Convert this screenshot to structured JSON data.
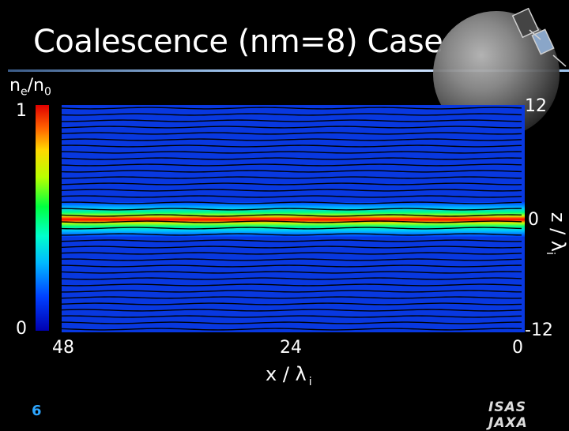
{
  "slide": {
    "title": "Coalescence (nm=8) Case",
    "slide_number": "6",
    "logo_text": "ISAS JAXA"
  },
  "colorbar": {
    "label_main": "n",
    "label_sub1": "e",
    "label_sep": "/n",
    "label_sub2": "0",
    "max_label": "1",
    "min_label": "0"
  },
  "chart_data": {
    "type": "heatmap",
    "title": "Coalescence (nm=8) Case",
    "quantity": "n_e/n_0",
    "xlabel": "x / λ i",
    "ylabel": "z / λ i",
    "x_ticks": [
      "48",
      "24",
      "0"
    ],
    "y_ticks": [
      "12",
      "0",
      "-12"
    ],
    "xlim": [
      48,
      0
    ],
    "ylim": [
      -12,
      12
    ],
    "color_range": [
      0,
      1
    ],
    "background_density": 0.1,
    "current_sheet_center_z": 0,
    "current_sheet_peak_density": 1.0,
    "current_sheet_half_width_z": 1.0,
    "field_line_count": 36
  }
}
